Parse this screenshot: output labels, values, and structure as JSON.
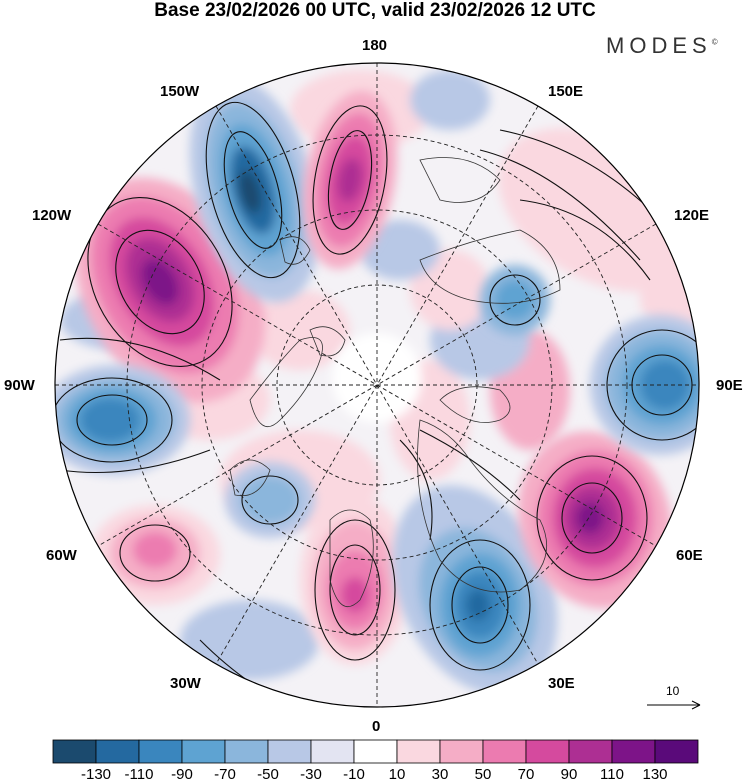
{
  "title": "Base 23/02/2026 00 UTC, valid 23/02/2026 12 UTC",
  "brand": "MODES",
  "brand_mark": "©",
  "longitude_labels": {
    "top": "180",
    "top_left": "150W",
    "top_right": "150E",
    "upper_left": "120W",
    "upper_right": "120E",
    "left": "90W",
    "right": "90E",
    "lower_left": "60W",
    "lower_right": "60E",
    "bottom_left": "30W",
    "bottom_right": "30E",
    "bottom": "0"
  },
  "reference_vector": {
    "value": "10"
  },
  "colorbar": {
    "ticks": [
      "-130",
      "-110",
      "-90",
      "-70",
      "-50",
      "-30",
      "-10",
      "10",
      "30",
      "50",
      "70",
      "90",
      "110",
      "130"
    ],
    "colors": [
      "#1b4a6e",
      "#2469a0",
      "#3a86be",
      "#5ea3d2",
      "#8bb6dc",
      "#b8c8e6",
      "#e3e4f2",
      "#ffffff",
      "#fad8e0",
      "#f5adc6",
      "#ec7bb0",
      "#d54a9e",
      "#ad2f93",
      "#7d1488",
      "#5a0a7a"
    ]
  },
  "map_features": {
    "anomalies": [
      {
        "label": "purple_120W",
        "value": 125
      },
      {
        "label": "blue_150W",
        "value": -115
      },
      {
        "label": "magenta_170W",
        "value": 100
      },
      {
        "label": "blue_90W",
        "value": -95
      },
      {
        "label": "purple_60E",
        "value": 115
      },
      {
        "label": "blue_90E",
        "value": -85
      },
      {
        "label": "blue_30E",
        "value": -100
      },
      {
        "label": "pink_10W",
        "value": 75
      },
      {
        "label": "pink_60W",
        "value": 60
      }
    ]
  }
}
